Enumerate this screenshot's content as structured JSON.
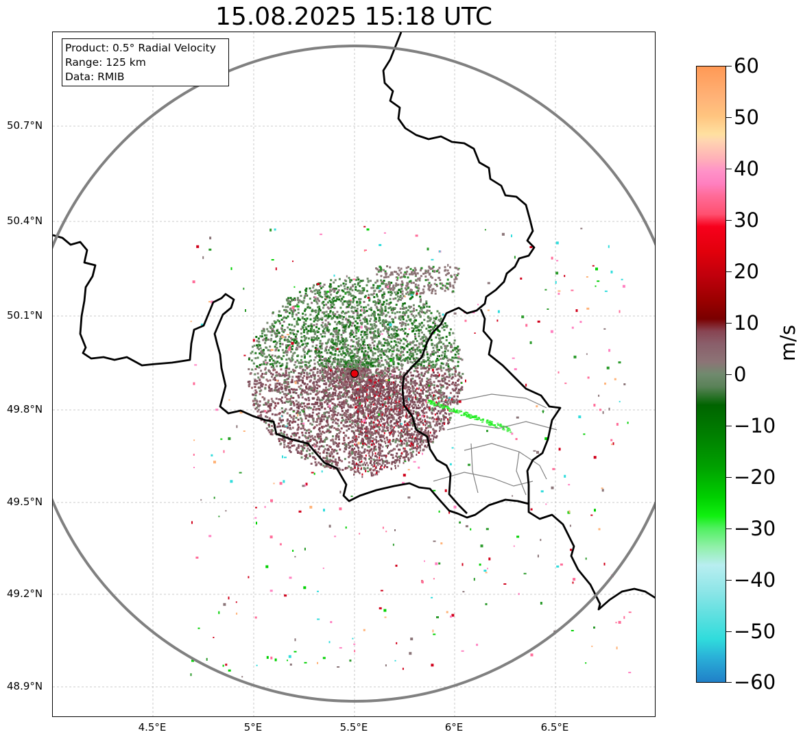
{
  "title": "15.08.2025 15:18 UTC",
  "info_box": {
    "line1": "Product: 0.5° Radial Velocity",
    "line2": "Range: 125 km",
    "line3": "Data: RMIB"
  },
  "lat_labels": [
    "50.7°N",
    "50.4°N",
    "50.1°N",
    "49.8°N",
    "49.5°N",
    "49.2°N",
    "48.9°N"
  ],
  "lon_labels": [
    "4.5°E",
    "5°E",
    "5.5°E",
    "6°E",
    "6.5°E"
  ],
  "colorbar": {
    "unit": "m/s",
    "ticks": [
      "60",
      "50",
      "40",
      "30",
      "20",
      "10",
      "0",
      "−10",
      "−20",
      "−30",
      "−40",
      "−50",
      "−60"
    ]
  },
  "map": {
    "radar_site": "5.5°E 49.91°N",
    "range_ring_color": "#808080",
    "border_color": "#000000"
  }
}
